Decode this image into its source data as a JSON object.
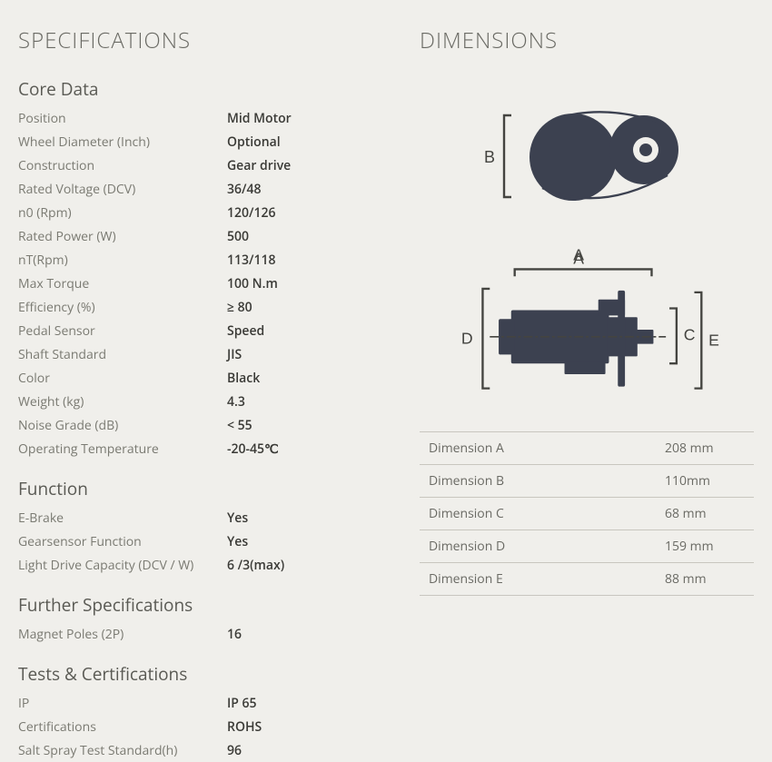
{
  "headings": {
    "specifications": "SPECIFICATIONS",
    "dimensions": "DIMENSIONS",
    "core_data": "Core Data",
    "function": "Function",
    "further": "Further Specifications",
    "tests": "Tests & Certifications"
  },
  "core": [
    {
      "label": "Position",
      "value": "Mid Motor"
    },
    {
      "label": "Wheel Diameter (Inch)",
      "value": "Optional"
    },
    {
      "label": "Construction",
      "value": "Gear drive"
    },
    {
      "label": "Rated Voltage (DCV)",
      "value": "36/48"
    },
    {
      "label": "n0 (Rpm)",
      "value": "120/126"
    },
    {
      "label": "Rated Power (W)",
      "value": "500"
    },
    {
      "label": "nT(Rpm)",
      "value": "113/118"
    },
    {
      "label": "Max Torque",
      "value": "100 N.m"
    },
    {
      "label": "Efficiency (%)",
      "value": "≥ 80"
    },
    {
      "label": "Pedal Sensor",
      "value": "Speed"
    },
    {
      "label": "Shaft Standard",
      "value": "JIS"
    },
    {
      "label": "Color",
      "value": "Black"
    },
    {
      "label": "Weight (kg)",
      "value": "4.3"
    },
    {
      "label": "Noise Grade (dB)",
      "value": "< 55"
    },
    {
      "label": "Operating Temperature",
      "value": "-20-45℃"
    }
  ],
  "function": [
    {
      "label": "E-Brake",
      "value": "Yes"
    },
    {
      "label": "Gearsensor Function",
      "value": "Yes"
    },
    {
      "label": "Light Drive Capacity (DCV / W)",
      "value": "6 /3(max)"
    }
  ],
  "further": [
    {
      "label": "Magnet Poles (2P)",
      "value": "16"
    }
  ],
  "tests": [
    {
      "label": "IP",
      "value": "IP 65"
    },
    {
      "label": "Certifications",
      "value": "ROHS"
    },
    {
      "label": "Salt Spray Test Standard(h)",
      "value": "96"
    }
  ],
  "dimensions_table": [
    {
      "label": "Dimension A",
      "value": "208 mm"
    },
    {
      "label": "Dimension B",
      "value": "110mm"
    },
    {
      "label": "Dimension C",
      "value": "68 mm"
    },
    {
      "label": "Dimension D",
      "value": "159 mm"
    },
    {
      "label": "Dimension E",
      "value": "88 mm"
    }
  ],
  "diagram_labels": {
    "A": "A",
    "B": "B",
    "C": "C",
    "D": "D",
    "E": "E"
  },
  "colors": {
    "background": "#f0efeb",
    "heading": "#6a6a64",
    "text": "#5a5a56",
    "value": "#3a3a36",
    "shape": "#3c4150",
    "line": "#444440",
    "table_border": "#c8c6bf"
  }
}
